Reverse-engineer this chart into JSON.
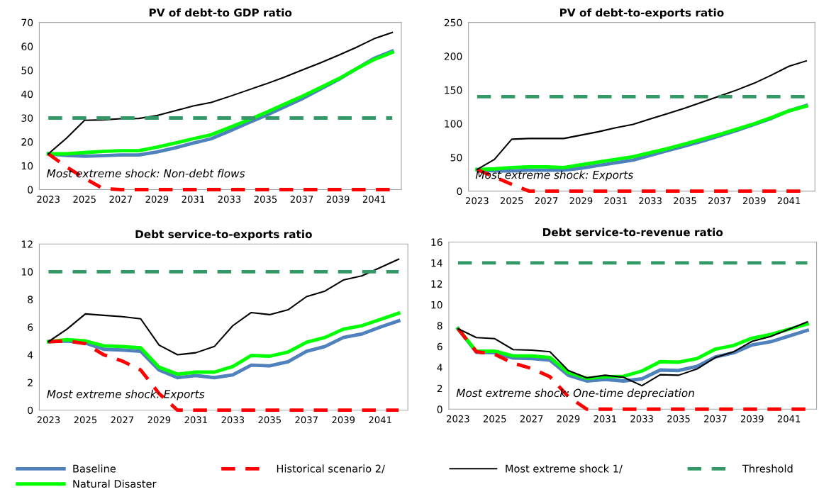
{
  "chart_data": [
    {
      "type": "line",
      "title": "PV of debt-to GDP ratio",
      "categories": [
        "2023",
        null,
        "2025",
        null,
        "2027",
        null,
        "2029",
        null,
        "2031",
        null,
        "2033",
        null,
        "2035",
        null,
        "2037",
        null,
        "2039",
        null,
        "2041",
        null
      ],
      "ylim": [
        0,
        70
      ],
      "yticks": [
        0,
        10,
        20,
        30,
        40,
        50,
        60,
        70
      ],
      "legend": "bottom",
      "annotations": [
        "Most extreme shock: Non-debt flows"
      ],
      "series": [
        {
          "name": "Baseline",
          "color": "#4f81bd",
          "line_style": "solid",
          "values": [
            15,
            14.3,
            14,
            14.2,
            14.5,
            14.5,
            15.8,
            17.5,
            19.5,
            21.3,
            24.5,
            27.8,
            31,
            34.5,
            38,
            42,
            46,
            50.5,
            55,
            58
          ]
        },
        {
          "name": "Natural Disaster",
          "color": "#00ff00",
          "line_style": "solid",
          "values": [
            15,
            15,
            15.5,
            16,
            16.3,
            16.3,
            17.8,
            19.5,
            21.3,
            23,
            26,
            29,
            32.2,
            35.6,
            39,
            42.6,
            46.3,
            50.5,
            54.5,
            57.5
          ]
        },
        {
          "name": "Historical scenario 2/",
          "color": "#ff0000",
          "line_style": "dashed",
          "values": [
            15,
            9.5,
            4.8,
            0.5,
            0,
            0,
            0,
            0,
            0,
            0,
            0,
            0,
            0,
            0,
            0,
            0,
            0,
            0,
            0,
            0
          ]
        },
        {
          "name": "Most extreme shock 1/",
          "color": "#000000",
          "line_style": "solid",
          "values": [
            15,
            21.5,
            29,
            29.2,
            29.7,
            29.8,
            31,
            33,
            35,
            36.5,
            39,
            41.6,
            44.2,
            47,
            50,
            53,
            56.2,
            59.5,
            63.2,
            65.8
          ]
        },
        {
          "name": "Threshold",
          "color": "#339966",
          "line_style": "dashed",
          "values": [
            30,
            30,
            30,
            30,
            30,
            30,
            30,
            30,
            30,
            30,
            30,
            30,
            30,
            30,
            30,
            30,
            30,
            30,
            30,
            30
          ]
        }
      ]
    },
    {
      "type": "line",
      "title": "PV of debt-to-exports ratio",
      "categories": [
        "2023",
        null,
        "2025",
        null,
        "2027",
        null,
        "2029",
        null,
        "2031",
        null,
        "2033",
        null,
        "2035",
        null,
        "2037",
        null,
        "2039",
        null,
        "2041",
        null
      ],
      "ylim": [
        0,
        250
      ],
      "yticks": [
        0,
        50,
        100,
        150,
        200,
        250
      ],
      "annotations": [
        "Most extreme shock: Exports"
      ],
      "series": [
        {
          "color": "#4f81bd",
          "line_style": "solid",
          "values": [
            32,
            30,
            30,
            31,
            31,
            31,
            34,
            38,
            42,
            46,
            53,
            60,
            67,
            74,
            82,
            90,
            99,
            108,
            119,
            127
          ]
        },
        {
          "color": "#00ff00",
          "line_style": "solid",
          "values": [
            32,
            33,
            35,
            36,
            36,
            35,
            39,
            43,
            47,
            51,
            57,
            63,
            70,
            77,
            84,
            92,
            100,
            109,
            119,
            126
          ]
        },
        {
          "color": "#ff0000",
          "line_style": "dashed",
          "values": [
            32,
            21,
            10,
            0,
            0,
            0,
            0,
            0,
            0,
            0,
            0,
            0,
            0,
            0,
            0,
            0,
            0,
            0,
            0,
            0
          ]
        },
        {
          "color": "#000000",
          "line_style": "solid",
          "values": [
            32,
            47,
            77,
            78,
            78,
            78,
            83,
            88,
            94,
            99,
            107,
            115,
            123,
            132,
            141,
            150,
            160,
            172,
            185,
            193
          ]
        },
        {
          "color": "#339966",
          "line_style": "dashed",
          "values": [
            140,
            140,
            140,
            140,
            140,
            140,
            140,
            140,
            140,
            140,
            140,
            140,
            140,
            140,
            140,
            140,
            140,
            140,
            140,
            140
          ]
        }
      ]
    },
    {
      "type": "line",
      "title": "Debt service-to-exports ratio",
      "categories": [
        "2023",
        null,
        "2025",
        null,
        "2027",
        null,
        "2029",
        null,
        "2031",
        null,
        "2033",
        null,
        "2035",
        null,
        "2037",
        null,
        "2039",
        null,
        "2041",
        null
      ],
      "ylim": [
        0,
        12
      ],
      "yticks": [
        0,
        2,
        4,
        6,
        8,
        10,
        12
      ],
      "annotations": [
        "Most extreme shock: Exports"
      ],
      "series": [
        {
          "color": "#4f81bd",
          "line_style": "solid",
          "values": [
            4.95,
            5.0,
            4.85,
            4.4,
            4.35,
            4.25,
            2.9,
            2.35,
            2.5,
            2.35,
            2.55,
            3.25,
            3.2,
            3.5,
            4.25,
            4.6,
            5.25,
            5.5,
            6.0,
            6.45
          ]
        },
        {
          "color": "#00ff00",
          "line_style": "solid",
          "values": [
            4.95,
            5.1,
            5.0,
            4.65,
            4.6,
            4.5,
            3.1,
            2.6,
            2.75,
            2.75,
            3.15,
            3.95,
            3.9,
            4.2,
            4.9,
            5.25,
            5.85,
            6.1,
            6.55,
            7.0
          ]
        },
        {
          "color": "#ff0000",
          "line_style": "dashed",
          "values": [
            4.95,
            5.0,
            4.8,
            4.0,
            3.55,
            2.9,
            1.2,
            0,
            0,
            0,
            0,
            0,
            0,
            0,
            0,
            0,
            0,
            0,
            0,
            0
          ]
        },
        {
          "color": "#000000",
          "line_style": "solid",
          "values": [
            4.95,
            5.85,
            6.95,
            6.85,
            6.75,
            6.6,
            4.7,
            4.0,
            4.15,
            4.6,
            6.1,
            7.05,
            6.9,
            7.25,
            8.2,
            8.6,
            9.4,
            9.7,
            10.3,
            10.9
          ]
        },
        {
          "color": "#339966",
          "line_style": "dashed",
          "values": [
            10,
            10,
            10,
            10,
            10,
            10,
            10,
            10,
            10,
            10,
            10,
            10,
            10,
            10,
            10,
            10,
            10,
            10,
            10,
            10
          ]
        }
      ]
    },
    {
      "type": "line",
      "title": "Debt service-to-revenue ratio",
      "categories": [
        "2023",
        null,
        "2025",
        null,
        "2027",
        null,
        "2029",
        null,
        "2031",
        null,
        "2033",
        null,
        "2035",
        null,
        "2037",
        null,
        "2039",
        null,
        "2041",
        null
      ],
      "ylim": [
        0,
        16
      ],
      "yticks": [
        0,
        2,
        4,
        6,
        8,
        10,
        12,
        14,
        16
      ],
      "annotations": [
        "Most extreme shock: One-time depreciation"
      ],
      "series": [
        {
          "color": "#4f81bd",
          "line_style": "solid",
          "values": [
            7.7,
            5.45,
            5.4,
            4.9,
            4.85,
            4.7,
            3.25,
            2.7,
            2.85,
            2.7,
            2.9,
            3.75,
            3.7,
            4.1,
            5.0,
            5.4,
            6.15,
            6.45,
            7.0,
            7.55
          ]
        },
        {
          "color": "#00ff00",
          "line_style": "solid",
          "values": [
            7.7,
            5.55,
            5.55,
            5.1,
            5.1,
            4.95,
            3.5,
            2.95,
            3.1,
            3.15,
            3.65,
            4.55,
            4.5,
            4.85,
            5.75,
            6.1,
            6.8,
            7.15,
            7.65,
            8.15
          ]
        },
        {
          "color": "#ff0000",
          "line_style": "dashed",
          "values": [
            7.7,
            5.5,
            5.25,
            4.4,
            3.9,
            3.1,
            1.2,
            0,
            0,
            0,
            0,
            0,
            0,
            0,
            0,
            0,
            0,
            0,
            0,
            0
          ]
        },
        {
          "color": "#000000",
          "line_style": "solid",
          "values": [
            7.7,
            6.85,
            6.75,
            5.7,
            5.65,
            5.5,
            3.7,
            3.0,
            3.25,
            3.05,
            2.25,
            3.3,
            3.25,
            3.85,
            4.95,
            5.5,
            6.5,
            6.95,
            7.65,
            8.35
          ]
        },
        {
          "color": "#339966",
          "line_style": "dashed",
          "values": [
            14,
            14,
            14,
            14,
            14,
            14,
            14,
            14,
            14,
            14,
            14,
            14,
            14,
            14,
            14,
            14,
            14,
            14,
            14,
            14
          ]
        }
      ]
    }
  ]
}
